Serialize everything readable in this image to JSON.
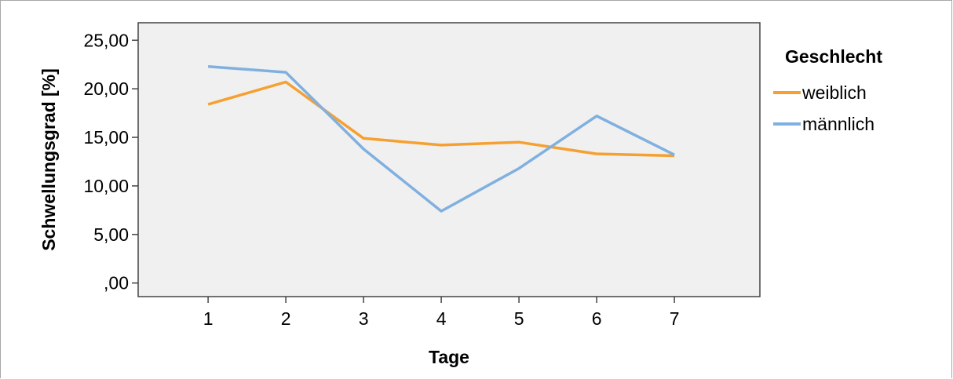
{
  "chart_data": {
    "type": "line",
    "xlabel": "Tage",
    "ylabel": "Schwellungsgrad [%]",
    "x": [
      1,
      2,
      3,
      4,
      5,
      6,
      7
    ],
    "x_tick_labels": [
      "1",
      "2",
      "3",
      "4",
      "5",
      "6",
      "7"
    ],
    "xlim": [
      0.1,
      8.1
    ],
    "ylim": [
      -1.4,
      26.8
    ],
    "y_ticks": [
      0,
      5,
      10,
      15,
      20,
      25
    ],
    "y_tick_labels": [
      ",00",
      "5,00",
      "10,00",
      "15,00",
      "20,00",
      "25,00"
    ],
    "grid": false,
    "legend": {
      "title": "Geschlecht",
      "placement": "right"
    },
    "series": [
      {
        "name": "weiblich",
        "color": "#f5a030",
        "values": [
          18.4,
          20.7,
          14.9,
          14.2,
          14.5,
          13.3,
          13.1
        ]
      },
      {
        "name": "männlich",
        "color": "#80b0e0",
        "values": [
          22.3,
          21.7,
          13.8,
          7.4,
          11.8,
          17.2,
          13.2
        ]
      }
    ],
    "plot_background": "#f0f0f0"
  }
}
